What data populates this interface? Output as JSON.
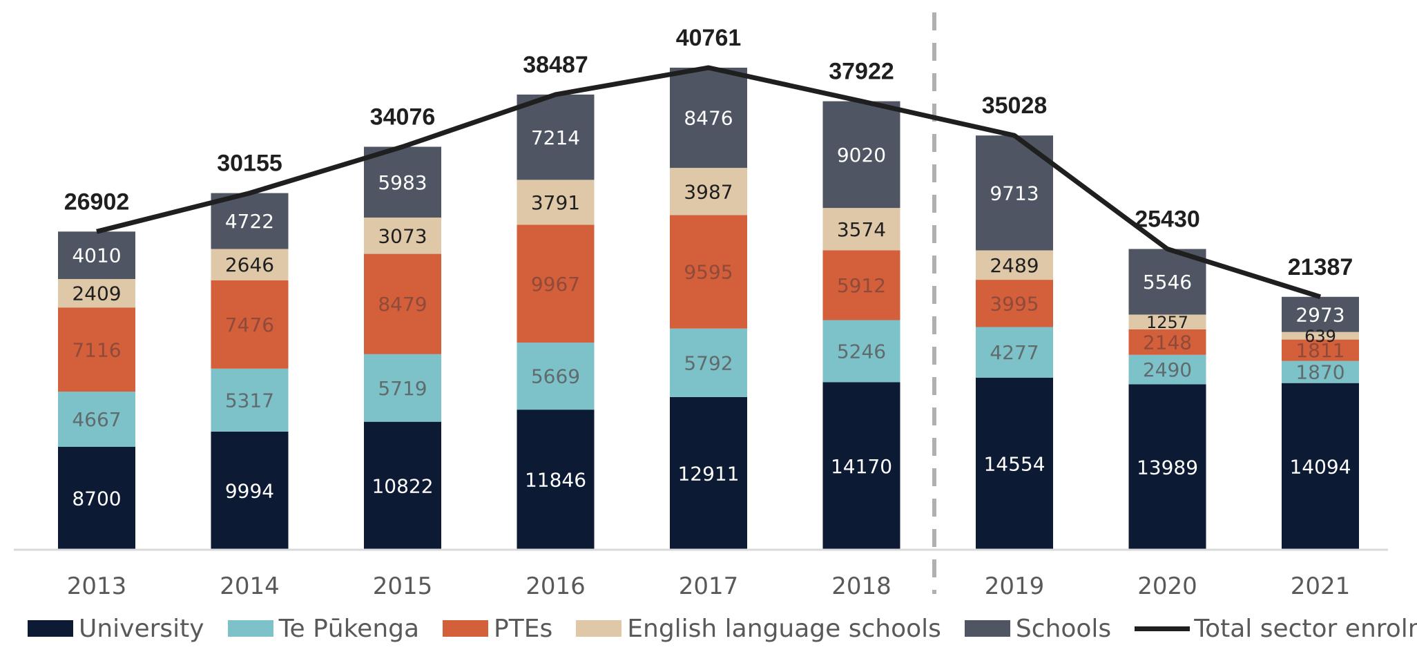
{
  "chart_data": {
    "type": "bar",
    "stacked": true,
    "categories": [
      "2013",
      "2014",
      "2015",
      "2016",
      "2017",
      "2018",
      "2019",
      "2020",
      "2021"
    ],
    "series": [
      {
        "name": "University",
        "color": "#0d1a33",
        "label_color": "#ffffff",
        "values": [
          8700,
          9994,
          10822,
          11846,
          12911,
          14170,
          14554,
          13989,
          14094
        ]
      },
      {
        "name": "Te Pūkenga",
        "color": "#7cc2c8",
        "label_color": "#5f6b6d",
        "values": [
          4667,
          5317,
          5719,
          5669,
          5792,
          5246,
          4277,
          2490,
          1870
        ]
      },
      {
        "name": "PTEs",
        "color": "#d35f3b",
        "label_color": "#8f4a3a",
        "values": [
          7116,
          7476,
          8479,
          9967,
          9595,
          5912,
          3995,
          2148,
          1811
        ]
      },
      {
        "name": "English language schools",
        "color": "#dfc8a8",
        "label_color": "#1f1f1f",
        "values": [
          2409,
          2646,
          3073,
          3791,
          3987,
          3574,
          2489,
          1257,
          639
        ]
      },
      {
        "name": "Schools",
        "color": "#4f5563",
        "label_color": "#ffffff",
        "values": [
          4010,
          4722,
          5983,
          7214,
          8476,
          9020,
          9713,
          5546,
          2973
        ]
      }
    ],
    "line": {
      "name": "Total sector enrolments",
      "color": "#1f1f1f",
      "values": [
        26902,
        30155,
        34076,
        38487,
        40761,
        37922,
        35028,
        25430,
        21387
      ]
    },
    "divider_between": [
      "2018",
      "2019"
    ],
    "ylim": [
      0,
      42000
    ],
    "legend_position": "bottom",
    "grid": false
  }
}
